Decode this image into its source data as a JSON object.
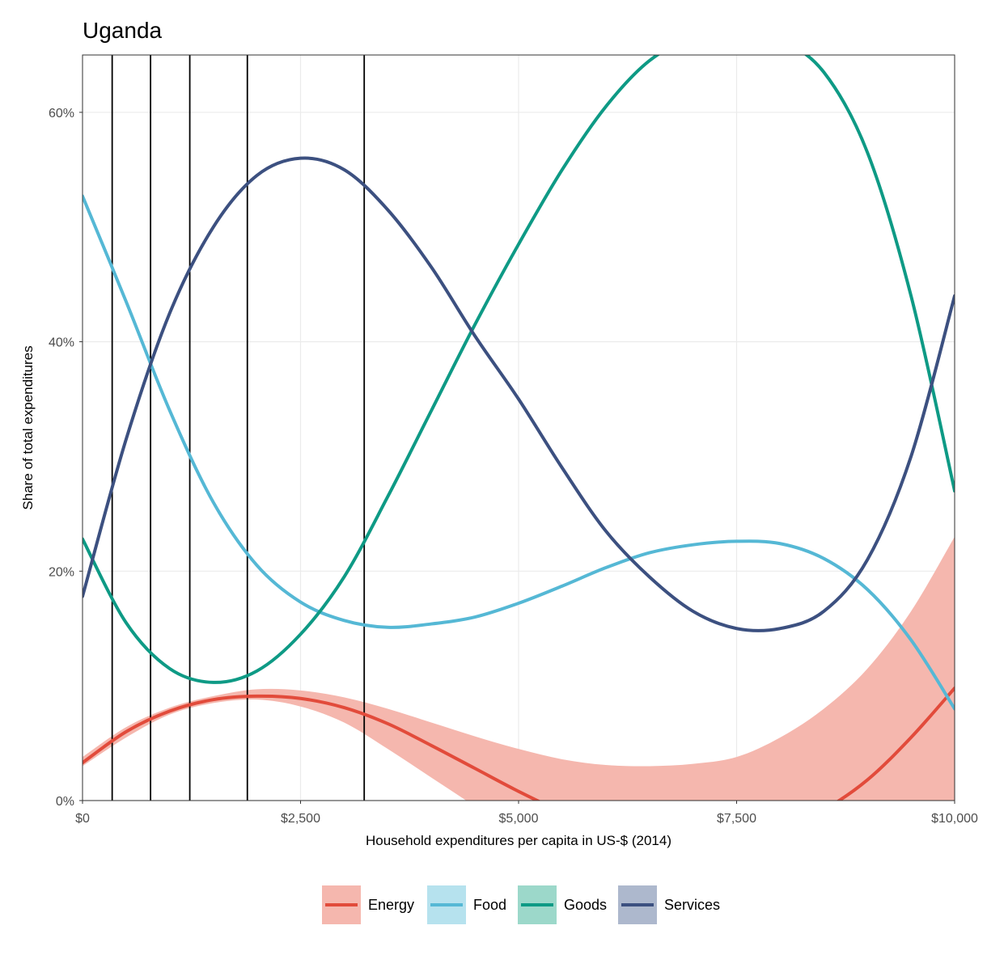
{
  "chart_data": {
    "type": "line",
    "title": "Uganda",
    "xlabel": "Household expenditures per capita in US-$ (2014)",
    "ylabel": "Share of total expenditures",
    "xlim": [
      0,
      10000
    ],
    "ylim": [
      0,
      65
    ],
    "x_ticks": [
      {
        "value": 0,
        "label": "$0"
      },
      {
        "value": 2500,
        "label": "$2,500"
      },
      {
        "value": 5000,
        "label": "$5,000"
      },
      {
        "value": 7500,
        "label": "$7,500"
      },
      {
        "value": 10000,
        "label": "$10,000"
      }
    ],
    "y_ticks": [
      {
        "value": 0,
        "label": "0%"
      },
      {
        "value": 20,
        "label": "20%"
      },
      {
        "value": 40,
        "label": "40%"
      },
      {
        "value": 60,
        "label": "60%"
      }
    ],
    "grid": true,
    "legend_position": "bottom",
    "vertical_lines": [
      340,
      780,
      1230,
      1890,
      3230
    ],
    "energy_band": {
      "x": [
        0,
        500,
        1000,
        1500,
        2000,
        2500,
        3000,
        3500,
        4000,
        4500,
        5000,
        5500,
        6000,
        6500,
        7000,
        7500,
        8000,
        8500,
        9000,
        9500,
        10000
      ],
      "lower": [
        3.0,
        5.5,
        7.5,
        8.5,
        8.8,
        8.2,
        6.8,
        4.5,
        2.0,
        -0.5,
        -3.0,
        -5.5,
        -7.5,
        -9.0,
        -10.0,
        -10.5,
        -10.5,
        -10.0,
        -9.0,
        -7.5,
        -5.0
      ],
      "upper": [
        3.8,
        6.4,
        8.1,
        9.1,
        9.7,
        9.6,
        9.0,
        8.0,
        6.8,
        5.6,
        4.5,
        3.6,
        3.1,
        3.0,
        3.2,
        3.8,
        5.5,
        8.0,
        11.5,
        16.5,
        23.0
      ]
    },
    "x": [
      0,
      500,
      1000,
      1500,
      2000,
      2500,
      3000,
      3500,
      4000,
      4500,
      5000,
      5500,
      6000,
      6500,
      7000,
      7500,
      8000,
      8500,
      9000,
      9500,
      10000
    ],
    "series": [
      {
        "name": "Energy",
        "color": "#E24B3B",
        "band_color": "#F5B7AE",
        "values": [
          3.3,
          6.0,
          7.8,
          8.8,
          9.1,
          8.9,
          8.1,
          6.7,
          4.8,
          2.8,
          0.8,
          -1.0,
          -2.4,
          -3.3,
          -3.6,
          -3.3,
          -2.4,
          -0.8,
          1.8,
          5.5,
          9.8
        ]
      },
      {
        "name": "Food",
        "color": "#55B8D5",
        "band_color": "#B6E2EE",
        "values": [
          52.7,
          43.5,
          34.0,
          26.0,
          20.5,
          17.3,
          15.7,
          15.1,
          15.4,
          16.0,
          17.2,
          18.7,
          20.3,
          21.6,
          22.3,
          22.6,
          22.4,
          21.1,
          18.4,
          14.0,
          8.0
        ]
      },
      {
        "name": "Goods",
        "color": "#0E9A85",
        "band_color": "#9CD8CA",
        "values": [
          22.8,
          15.5,
          11.5,
          10.3,
          11.3,
          14.5,
          19.5,
          26.5,
          34.0,
          41.5,
          48.5,
          55.0,
          60.5,
          64.5,
          66.5,
          67.0,
          66.3,
          63.5,
          56.5,
          44.0,
          27.0
        ]
      },
      {
        "name": "Services",
        "color": "#3C5080",
        "band_color": "#ADB8CD",
        "values": [
          17.8,
          31.5,
          42.5,
          50.0,
          54.5,
          56.0,
          55.0,
          51.5,
          46.5,
          40.5,
          35.0,
          29.0,
          23.5,
          19.5,
          16.5,
          15.0,
          15.0,
          16.5,
          21.0,
          30.0,
          44.0
        ]
      }
    ]
  }
}
